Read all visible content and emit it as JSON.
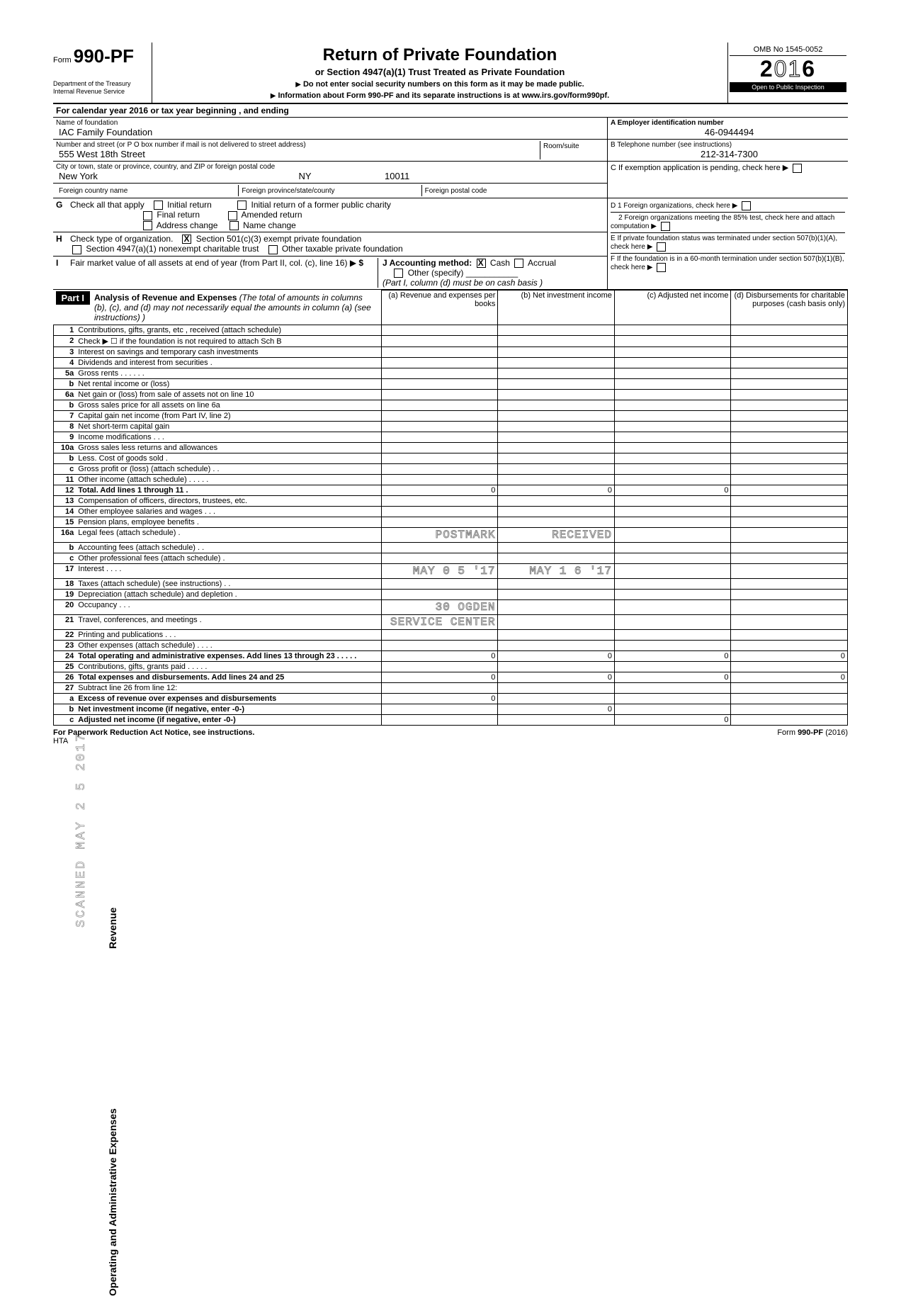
{
  "form": {
    "number_prefix": "Form",
    "number": "990-PF",
    "dept1": "Department of the Treasury",
    "dept2": "Internal Revenue Service",
    "title": "Return of Private Foundation",
    "subtitle": "or Section 4947(a)(1) Trust Treated as Private Foundation",
    "instr1": "Do not enter social security numbers on this form as it may be made public.",
    "instr2": "Information about Form 990-PF and its separate instructions is at www.irs.gov/form990pf.",
    "omb": "OMB No 1545-0052",
    "year": "2016",
    "public": "Open to Public Inspection"
  },
  "calendar": "For calendar year 2016 or tax year beginning                                                            , and ending",
  "foundation": {
    "name_label": "Name of foundation",
    "name": "IAC Family Foundation",
    "addr_label": "Number and street (or P O  box number if mail is not delivered to street address)",
    "addr": "555 West 18th Street",
    "room_label": "Room/suite",
    "room": "",
    "city_label": "City or town, state or province, country, and ZIP or foreign postal code",
    "city": "New York",
    "state": "NY",
    "zip": "10011",
    "foreign_country_label": "Foreign country name",
    "foreign_prov_label": "Foreign province/state/county",
    "foreign_postal_label": "Foreign postal code"
  },
  "right": {
    "ein_label": "A  Employer identification number",
    "ein": "46-0944494",
    "tel_label": "B  Telephone number (see instructions)",
    "tel": "212-314-7300",
    "c_label": "C  If exemption application is pending, check here",
    "d1": "D  1  Foreign organizations, check here",
    "d2": "2  Foreign organizations meeting the 85% test, check here and attach computation",
    "e": "E  If private foundation status was terminated under section 507(b)(1)(A), check here",
    "f": "F  If the foundation is in a 60-month termination under section 507(b)(1)(B), check here"
  },
  "g": {
    "label": "Check all that apply",
    "opts": [
      "Initial return",
      "Final return",
      "Address change",
      "Initial return of a former public charity",
      "Amended return",
      "Name change"
    ]
  },
  "h": {
    "label": "Check type of organization.",
    "opt1": "Section 501(c)(3) exempt private foundation",
    "opt2": "Section 4947(a)(1) nonexempt charitable trust",
    "opt3": "Other taxable private foundation"
  },
  "i": {
    "label": "Fair market value of all assets at end of year (from Part II, col. (c), line 16)",
    "j_label": "J   Accounting method:",
    "cash": "Cash",
    "accrual": "Accrual",
    "other": "Other (specify)",
    "note": "(Part I, column (d) must be on cash basis )"
  },
  "part1": {
    "label": "Part I",
    "title": "Analysis of Revenue and Expenses",
    "note": "(The total of amounts in columns (b), (c), and (d) may not necessarily equal the amounts in column (a) (see instructions) )",
    "cols": [
      "(a)  Revenue and expenses per books",
      "(b)  Net investment income",
      "(c)  Adjusted net income",
      "(d)  Disbursements for charitable purposes (cash basis only)"
    ]
  },
  "revenue_label": "Revenue",
  "expenses_label": "Operating and Administrative Expenses",
  "scanned_stamp": "SCANNED  MAY 2 5 2017",
  "rows_rev": [
    {
      "n": "1",
      "d": "Contributions, gifts, grants, etc , received (attach schedule)"
    },
    {
      "n": "2",
      "d": "Check ▶ ☐ if the foundation is not required to attach Sch  B"
    },
    {
      "n": "3",
      "d": "Interest on savings and temporary cash investments"
    },
    {
      "n": "4",
      "d": "Dividends and interest from securities   ."
    },
    {
      "n": "5a",
      "d": "Gross rents       .    .    .    .        .    ."
    },
    {
      "n": "b",
      "d": "Net rental income or (loss)"
    },
    {
      "n": "6a",
      "d": "Net gain or (loss) from sale of assets not on line 10"
    },
    {
      "n": "b",
      "d": "Gross sales price for all assets on line 6a"
    },
    {
      "n": "7",
      "d": "Capital gain net income (from Part IV, line 2)"
    },
    {
      "n": "8",
      "d": "Net short-term capital gain"
    },
    {
      "n": "9",
      "d": "Income modifications   .         .    ."
    },
    {
      "n": "10a",
      "d": "Gross sales less returns and allowances"
    },
    {
      "n": "b",
      "d": "Less. Cost of goods sold        ."
    },
    {
      "n": "c",
      "d": "Gross profit or (loss) (attach schedule)   .         ."
    },
    {
      "n": "11",
      "d": "Other income (attach schedule)   .    .     .    .    ."
    },
    {
      "n": "12",
      "d": "Total. Add lines 1 through 11   .",
      "a": "0",
      "b": "0",
      "c": "0",
      "bold": true
    }
  ],
  "rows_exp": [
    {
      "n": "13",
      "d": "Compensation of officers, directors, trustees, etc."
    },
    {
      "n": "14",
      "d": "Other employee salaries and wages       .    .     ."
    },
    {
      "n": "15",
      "d": "Pension plans, employee benefits   ."
    },
    {
      "n": "16a",
      "d": "Legal fees (attach schedule)            ."
    },
    {
      "n": "b",
      "d": "Accounting fees (attach schedule)     .    ."
    },
    {
      "n": "c",
      "d": "Other professional fees (attach schedule)   ."
    },
    {
      "n": "17",
      "d": "Interest    .   .   .                     ."
    },
    {
      "n": "18",
      "d": "Taxes (attach schedule) (see instructions)        .   ."
    },
    {
      "n": "19",
      "d": "Depreciation (attach schedule) and depletion   ."
    },
    {
      "n": "20",
      "d": "Occupancy                    .              .   ."
    },
    {
      "n": "21",
      "d": "Travel, conferences, and meetings        ."
    },
    {
      "n": "22",
      "d": "Printing and publications          .         .   ."
    },
    {
      "n": "23",
      "d": "Other expenses (attach schedule)     .   .   .   ."
    },
    {
      "n": "24",
      "d": "Total operating and administrative expenses. Add lines 13 through 23       .    .       .    .     .",
      "a": "0",
      "b": "0",
      "c": "0",
      "dd": "0",
      "bold": true
    },
    {
      "n": "25",
      "d": "Contributions, gifts, grants paid   .   .     .   .    ."
    },
    {
      "n": "26",
      "d": "Total expenses and disbursements. Add lines 24 and 25",
      "a": "0",
      "b": "0",
      "c": "0",
      "dd": "0",
      "bold": true
    }
  ],
  "rows_net": [
    {
      "n": "27",
      "d": "Subtract line 26 from line 12:"
    },
    {
      "n": "a",
      "d": "Excess of revenue over expenses and disbursements",
      "a": "0",
      "bold": true
    },
    {
      "n": "b",
      "d": "Net investment income (if negative, enter -0-)",
      "b": "0",
      "bold": true
    },
    {
      "n": "c",
      "d": "Adjusted net income (if negative, enter -0-)",
      "c": "0",
      "bold": true
    }
  ],
  "stamps": {
    "postmark": "POSTMARK",
    "received": "RECEIVED",
    "date1": "MAY 0 5 '17",
    "date2": "MAY 1 6 '17",
    "ogden": "30 OGDEN",
    "service": "SERVICE CENTER"
  },
  "footer": {
    "left": "For Paperwork Reduction Act Notice, see instructions.",
    "hta": "HTA",
    "right": "Form 990-PF (2016)"
  }
}
